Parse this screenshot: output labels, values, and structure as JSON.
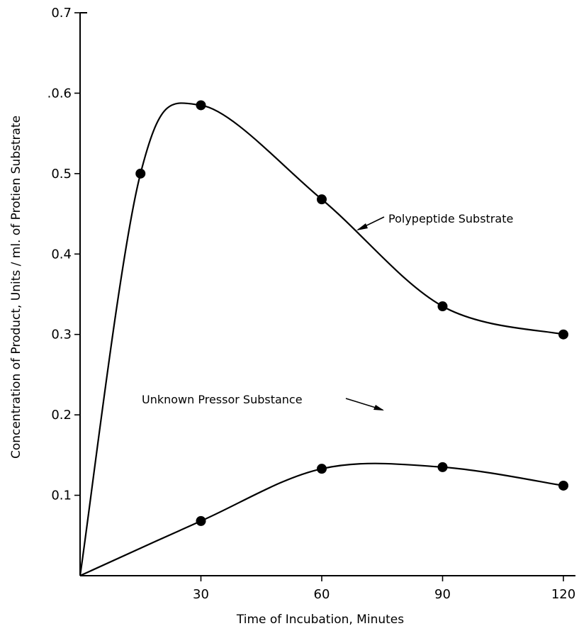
{
  "chart_data": {
    "type": "line",
    "xlabel": "Time of Incubation, Minutes",
    "ylabel": "Concentration of Product, Units / ml. of Protien Substrate",
    "xlim": [
      0,
      122
    ],
    "ylim": [
      0,
      0.7
    ],
    "x_ticks": [
      30,
      60,
      90,
      120
    ],
    "x_tick_labels": [
      "30",
      "60",
      "90",
      "120"
    ],
    "y_ticks": [
      0.1,
      0.2,
      0.3,
      0.4,
      0.5,
      0.6,
      0.7
    ],
    "y_tick_labels": [
      "0.1",
      "0.2",
      "0.3",
      "0.4",
      "0.5",
      ".0.6",
      "0.7"
    ],
    "grid": false,
    "legend": "none",
    "series": [
      {
        "name": "Polypeptide Substrate",
        "x": [
          0,
          15,
          30,
          60,
          90,
          120
        ],
        "y": [
          0,
          0.5,
          0.585,
          0.468,
          0.335,
          0.3
        ],
        "markers": [
          false,
          true,
          true,
          true,
          true,
          true
        ]
      },
      {
        "name": "Unknown Pressor Substance",
        "x": [
          0,
          30,
          60,
          90,
          120
        ],
        "y": [
          0,
          0.068,
          0.133,
          0.135,
          0.112
        ],
        "markers": [
          false,
          true,
          true,
          true,
          true
        ]
      }
    ],
    "annotations": [
      {
        "text": "Polypeptide Substrate",
        "series": 0
      },
      {
        "text": "Unknown Pressor Substance",
        "series": 1
      }
    ]
  }
}
